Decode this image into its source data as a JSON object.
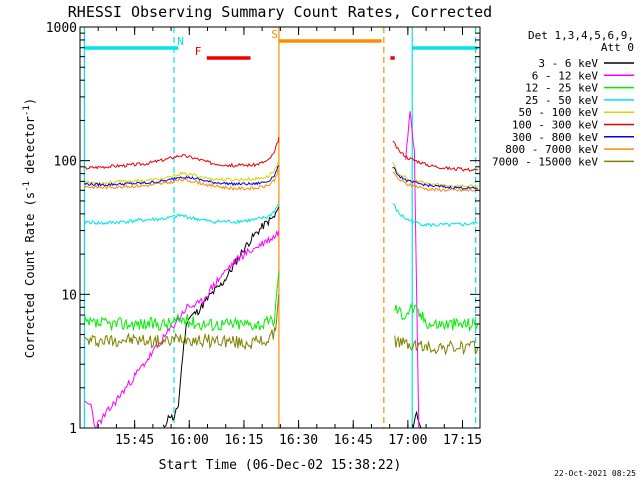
{
  "chart_data": {
    "type": "line",
    "title": "RHESSI Observing Summary Count Rates, Corrected",
    "xlabel": "Start Time (06-Dec-02 15:38:22)",
    "ylabel_main": "Corrected Count Rate (s",
    "ylabel_sup1": "-1",
    "ylabel_mid": " detector",
    "ylabel_sup2": "-1",
    "ylabel_end": ")",
    "timestamp": "22-Oct-2021 08:25",
    "y_scale": "log",
    "ylim": [
      1,
      1000
    ],
    "xlim_minutes": [
      15.5,
      17.33
    ],
    "x_ticks": [
      {
        "label": "15:45",
        "t": 15.75
      },
      {
        "label": "16:00",
        "t": 16.0
      },
      {
        "label": "16:15",
        "t": 16.25
      },
      {
        "label": "16:30",
        "t": 16.5
      },
      {
        "label": "16:45",
        "t": 16.75
      },
      {
        "label": "17:00",
        "t": 17.0
      },
      {
        "label": "17:15",
        "t": 17.25
      }
    ],
    "y_ticks": [
      {
        "label": "1",
        "v": 1
      },
      {
        "label": "10",
        "v": 10
      },
      {
        "label": "100",
        "v": 100
      },
      {
        "label": "1000",
        "v": 1000
      }
    ],
    "legend": {
      "header": [
        "Det 1,3,4,5,6,9,",
        "Att 0"
      ],
      "placement": "right",
      "entries": [
        {
          "label": "3 - 6 keV",
          "color": "#000000"
        },
        {
          "label": "6 - 12 keV",
          "color": "#ff00ff"
        },
        {
          "label": "12 - 25 keV",
          "color": "#00ee00"
        },
        {
          "label": "25 - 50 keV",
          "color": "#00e5e5"
        },
        {
          "label": "50 - 100 keV",
          "color": "#d6d600"
        },
        {
          "label": "100 - 300 keV",
          "color": "#ee0000"
        },
        {
          "label": "300 - 800 keV",
          "color": "#0000ee"
        },
        {
          "label": "800 - 7000 keV",
          "color": "#ff8c00"
        },
        {
          "label": "7000 - 15000 keV",
          "color": "#808000"
        }
      ]
    },
    "flags": [
      {
        "label": "N",
        "color": "#00e5e5",
        "segments": [
          [
            15.52,
            15.95
          ],
          [
            17.02,
            17.32
          ]
        ],
        "label_at": 15.96
      },
      {
        "label": "F",
        "color": "#ee0000",
        "segments": [
          [
            16.08,
            16.28
          ],
          [
            16.92,
            16.94
          ]
        ],
        "label_at": 16.04
      },
      {
        "label": "S",
        "color": "#ff8c00",
        "segments": [
          [
            16.41,
            16.88
          ]
        ],
        "label_at": 16.39
      }
    ],
    "vlines": [
      {
        "t": 15.52,
        "color": "#00e5e5",
        "style": "solid"
      },
      {
        "t": 15.93,
        "color": "#00e5e5",
        "style": "dashed"
      },
      {
        "t": 16.41,
        "color": "#ff8c00",
        "style": "solid"
      },
      {
        "t": 16.89,
        "color": "#ff8c00",
        "style": "dashed"
      },
      {
        "t": 17.02,
        "color": "#00e5e5",
        "style": "solid"
      },
      {
        "t": 17.31,
        "color": "#00e5e5",
        "style": "dashed"
      }
    ],
    "gap": [
      16.41,
      16.89
    ],
    "series": [
      {
        "name": "3 - 6 keV",
        "color": "#000000",
        "seed": 11,
        "jitter": 0.03,
        "points": [
          [
            15.88,
            1.0
          ],
          [
            15.91,
            1.25
          ],
          [
            15.93,
            1.15
          ],
          [
            15.95,
            1.5
          ],
          [
            15.97,
            3.5
          ],
          [
            15.99,
            6.5
          ],
          [
            16.04,
            7.5
          ],
          [
            16.1,
            10
          ],
          [
            16.15,
            12
          ],
          [
            16.2,
            16
          ],
          [
            16.25,
            22
          ],
          [
            16.3,
            28
          ],
          [
            16.35,
            34
          ],
          [
            16.39,
            38
          ],
          [
            16.41,
            45
          ],
          [
            16.9,
            null
          ],
          [
            17.02,
            1.0
          ],
          [
            17.04,
            1.3
          ],
          [
            17.06,
            1.0
          ]
        ]
      },
      {
        "name": "6 - 12 keV",
        "color": "#ff00ff",
        "seed": 23,
        "jitter": 0.03,
        "points": [
          [
            15.52,
            1.5
          ],
          [
            15.55,
            1.5
          ],
          [
            15.57,
            1.0
          ],
          [
            15.99,
            8
          ],
          [
            16.05,
            8.5
          ],
          [
            16.1,
            11
          ],
          [
            16.15,
            14
          ],
          [
            16.2,
            17
          ],
          [
            16.25,
            20
          ],
          [
            16.3,
            22
          ],
          [
            16.35,
            25
          ],
          [
            16.39,
            27
          ],
          [
            16.41,
            30
          ],
          [
            16.9,
            null
          ],
          [
            16.99,
            100
          ],
          [
            17.01,
            250
          ],
          [
            17.03,
            120
          ],
          [
            17.05,
            1.0
          ]
        ]
      },
      {
        "name": "12 - 25 keV",
        "color": "#00ee00",
        "seed": 37,
        "jitter": 0.05,
        "points": [
          [
            15.52,
            6
          ],
          [
            15.6,
            6
          ],
          [
            15.7,
            6
          ],
          [
            15.8,
            6
          ],
          [
            15.9,
            6
          ],
          [
            15.97,
            6.5
          ],
          [
            16.05,
            6
          ],
          [
            16.15,
            6
          ],
          [
            16.25,
            6
          ],
          [
            16.35,
            6
          ],
          [
            16.39,
            6.5
          ],
          [
            16.41,
            15
          ],
          [
            16.9,
            null
          ],
          [
            16.94,
            8
          ],
          [
            16.98,
            7
          ],
          [
            17.02,
            8
          ],
          [
            17.1,
            6
          ],
          [
            17.2,
            6
          ],
          [
            17.32,
            6
          ]
        ]
      },
      {
        "name": "25 - 50 keV",
        "color": "#00e5e5",
        "seed": 41,
        "jitter": 0.015,
        "points": [
          [
            15.52,
            35
          ],
          [
            15.6,
            34
          ],
          [
            15.7,
            35
          ],
          [
            15.8,
            36
          ],
          [
            15.9,
            37
          ],
          [
            15.96,
            39
          ],
          [
            16.02,
            37
          ],
          [
            16.1,
            35
          ],
          [
            16.2,
            35
          ],
          [
            16.3,
            36
          ],
          [
            16.36,
            38
          ],
          [
            16.39,
            42
          ],
          [
            16.41,
            48
          ],
          [
            16.9,
            null
          ],
          [
            16.93,
            48
          ],
          [
            16.96,
            40
          ],
          [
            17.0,
            36
          ],
          [
            17.05,
            34
          ],
          [
            17.1,
            33
          ],
          [
            17.2,
            33
          ],
          [
            17.32,
            34
          ]
        ]
      },
      {
        "name": "50 - 100 keV",
        "color": "#d6d600",
        "seed": 53,
        "jitter": 0.012,
        "points": [
          [
            15.52,
            69
          ],
          [
            15.6,
            68
          ],
          [
            15.7,
            70
          ],
          [
            15.8,
            71
          ],
          [
            15.9,
            74
          ],
          [
            15.96,
            80
          ],
          [
            16.02,
            78
          ],
          [
            16.1,
            73
          ],
          [
            16.2,
            72
          ],
          [
            16.3,
            73
          ],
          [
            16.36,
            76
          ],
          [
            16.39,
            85
          ],
          [
            16.41,
            100
          ],
          [
            16.9,
            null
          ],
          [
            16.93,
            95
          ],
          [
            16.96,
            80
          ],
          [
            17.0,
            72
          ],
          [
            17.1,
            67
          ],
          [
            17.2,
            65
          ],
          [
            17.32,
            64
          ]
        ]
      },
      {
        "name": "100 - 300 keV",
        "color": "#ee0000",
        "seed": 67,
        "jitter": 0.012,
        "points": [
          [
            15.52,
            88
          ],
          [
            15.6,
            90
          ],
          [
            15.7,
            92
          ],
          [
            15.8,
            95
          ],
          [
            15.9,
            103
          ],
          [
            15.96,
            110
          ],
          [
            16.02,
            105
          ],
          [
            16.1,
            96
          ],
          [
            16.2,
            92
          ],
          [
            16.3,
            93
          ],
          [
            16.36,
            100
          ],
          [
            16.39,
            115
          ],
          [
            16.41,
            150
          ],
          [
            16.9,
            null
          ],
          [
            16.93,
            140
          ],
          [
            16.96,
            118
          ],
          [
            17.0,
            105
          ],
          [
            17.1,
            92
          ],
          [
            17.2,
            87
          ],
          [
            17.32,
            85
          ]
        ]
      },
      {
        "name": "300 - 800 keV",
        "color": "#0000ee",
        "seed": 79,
        "jitter": 0.01,
        "points": [
          [
            15.52,
            67
          ],
          [
            15.6,
            66
          ],
          [
            15.7,
            67
          ],
          [
            15.8,
            68
          ],
          [
            15.9,
            71
          ],
          [
            15.96,
            76
          ],
          [
            16.02,
            74
          ],
          [
            16.1,
            69
          ],
          [
            16.2,
            67
          ],
          [
            16.3,
            67
          ],
          [
            16.36,
            70
          ],
          [
            16.39,
            78
          ],
          [
            16.41,
            92
          ],
          [
            16.9,
            null
          ],
          [
            16.93,
            90
          ],
          [
            16.96,
            77
          ],
          [
            17.0,
            70
          ],
          [
            17.1,
            65
          ],
          [
            17.2,
            63
          ],
          [
            17.32,
            62
          ]
        ]
      },
      {
        "name": "800 - 7000 keV",
        "color": "#ff8c00",
        "seed": 83,
        "jitter": 0.012,
        "points": [
          [
            15.52,
            64
          ],
          [
            15.6,
            63
          ],
          [
            15.7,
            64
          ],
          [
            15.8,
            65
          ],
          [
            15.9,
            68
          ],
          [
            15.96,
            72
          ],
          [
            16.02,
            70
          ],
          [
            16.1,
            65
          ],
          [
            16.2,
            62
          ],
          [
            16.3,
            62
          ],
          [
            16.36,
            65
          ],
          [
            16.39,
            72
          ],
          [
            16.41,
            85
          ],
          [
            16.9,
            null
          ],
          [
            16.93,
            82
          ],
          [
            16.96,
            72
          ],
          [
            17.0,
            66
          ],
          [
            17.1,
            61
          ],
          [
            17.2,
            60
          ],
          [
            17.32,
            60
          ]
        ]
      },
      {
        "name": "7000 - 15000 keV",
        "color": "#808000",
        "seed": 97,
        "jitter": 0.05,
        "points": [
          [
            15.52,
            4.5
          ],
          [
            15.6,
            4.5
          ],
          [
            15.7,
            4.6
          ],
          [
            15.8,
            4.5
          ],
          [
            15.9,
            4.4
          ],
          [
            15.97,
            4.8
          ],
          [
            16.05,
            4.5
          ],
          [
            16.15,
            4.5
          ],
          [
            16.25,
            4.3
          ],
          [
            16.35,
            4.5
          ],
          [
            16.39,
            5
          ],
          [
            16.41,
            10
          ],
          [
            16.9,
            null
          ],
          [
            16.94,
            4.5
          ],
          [
            17.0,
            4.2
          ],
          [
            17.1,
            4.0
          ],
          [
            17.2,
            4.0
          ],
          [
            17.32,
            4.0
          ]
        ]
      }
    ]
  }
}
